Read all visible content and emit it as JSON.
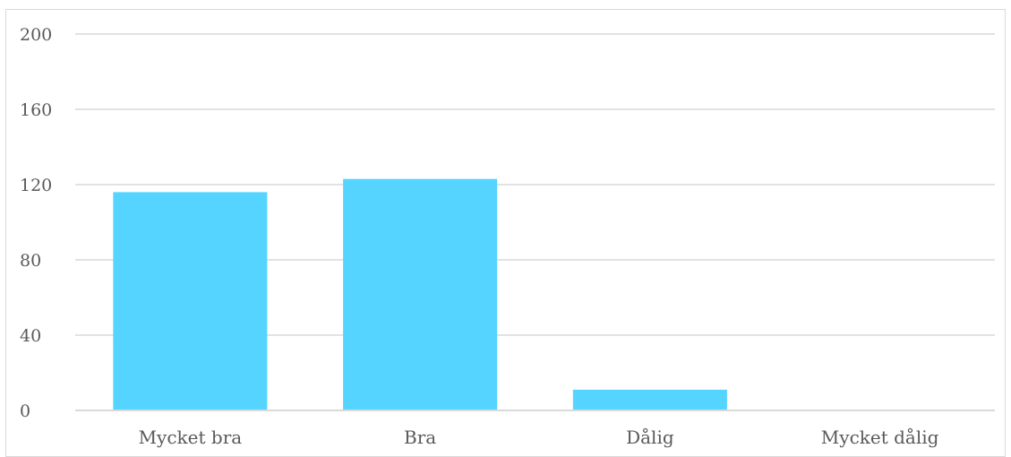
{
  "chart_data": {
    "type": "bar",
    "categories": [
      "Mycket bra",
      "Bra",
      "Dålig",
      "Mycket dålig"
    ],
    "values": [
      116,
      123,
      11,
      0
    ],
    "title": "",
    "xlabel": "",
    "ylabel": "",
    "ylim": [
      0,
      200
    ],
    "yticks": [
      "0",
      "40",
      "80",
      "120",
      "160",
      "200"
    ],
    "grid": true,
    "legend": "none",
    "colors": {
      "bar": "#55d4ff",
      "grid": "#d9d9d9",
      "text": "#595959"
    }
  }
}
